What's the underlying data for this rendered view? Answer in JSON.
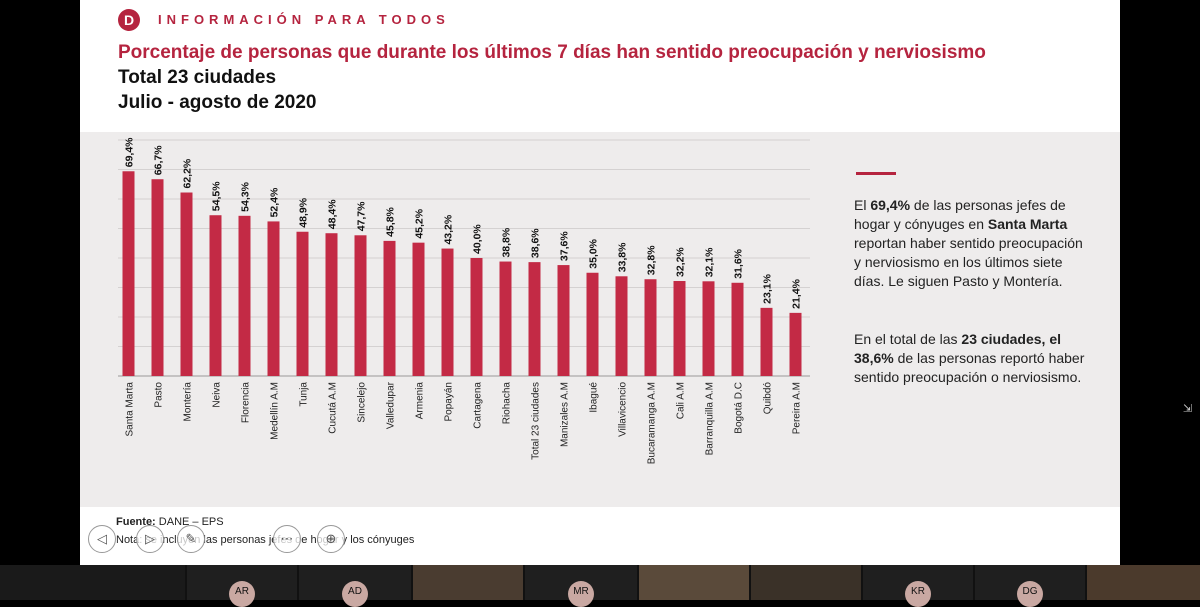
{
  "header": {
    "logo_letter": "D",
    "brand": "INFORMACIÓN PARA TODOS",
    "title": "Porcentaje de personas que durante los últimos 7 días han sentido preocupación y nerviosismo",
    "subtitle_1": "Total 23 ciudades",
    "subtitle_2": "Julio - agosto de 2020"
  },
  "colors": {
    "accent": "#b5243f",
    "bar": "#c32a45",
    "panel": "#eeecec"
  },
  "chart_data": {
    "type": "bar",
    "title": "Porcentaje de personas que durante los últimos 7 días han sentido preocupación y nerviosismo",
    "categories": [
      "Santa Marta",
      "Pasto",
      "Montería",
      "Neiva",
      "Florencia",
      "Medellín A.M",
      "Tunja",
      "Cucutá A.M",
      "Sincelejo",
      "Valledupar",
      "Armenia",
      "Popayán",
      "Cartagena",
      "Riohacha",
      "Total 23 ciudades",
      "Manizales A.M",
      "Ibagué",
      "Villavicencio",
      "Bucaramanga A.M",
      "Cali A.M",
      "Barranquilla A.M",
      "Bogotá D.C",
      "Quibdó",
      "Pereira A.M"
    ],
    "values": [
      69.4,
      66.7,
      62.2,
      54.5,
      54.3,
      52.4,
      48.9,
      48.4,
      47.7,
      45.8,
      45.2,
      43.2,
      40.0,
      38.8,
      38.6,
      37.6,
      35.0,
      33.8,
      32.8,
      32.2,
      32.1,
      31.6,
      23.1,
      21.4
    ],
    "value_labels": [
      "69,4%",
      "66,7%",
      "62,2%",
      "54,5%",
      "54,3%",
      "52,4%",
      "48,9%",
      "48,4%",
      "47,7%",
      "45,8%",
      "45,2%",
      "43,2%",
      "40,0%",
      "38,8%",
      "38,6%",
      "37,6%",
      "35,0%",
      "33,8%",
      "32,8%",
      "32,2%",
      "32,1%",
      "31,6%",
      "23,1%",
      "21,4%"
    ],
    "ylim": [
      0,
      80
    ],
    "grid": true,
    "xlabel": "",
    "ylabel": ""
  },
  "description": {
    "p1_a": "El ",
    "p1_b": "69,4%",
    "p1_c": " de las personas jefes de hogar y cónyuges en ",
    "p1_d": "Santa Marta",
    "p1_e": " reportan haber sentido preocupación y nerviosismo en los últimos siete días. Le siguen Pasto y Montería.",
    "p2_a": "En el total de las ",
    "p2_b": "23 ciudades, el 38,6%",
    "p2_c": " de las personas reportó haber sentido preocupación o nerviosismo."
  },
  "footer": {
    "source_label": "Fuente:",
    "source_value": "DANE – EPS",
    "note": "Nota: se incluyen las personas jefes de hogar y los cónyuges"
  },
  "controls": {
    "prev": "◁",
    "next": "▷",
    "pen": "✎",
    "more": "⋯",
    "zoom": "⊕"
  },
  "participants": [
    "AR",
    "AD",
    "MR",
    "KR",
    "DG"
  ]
}
